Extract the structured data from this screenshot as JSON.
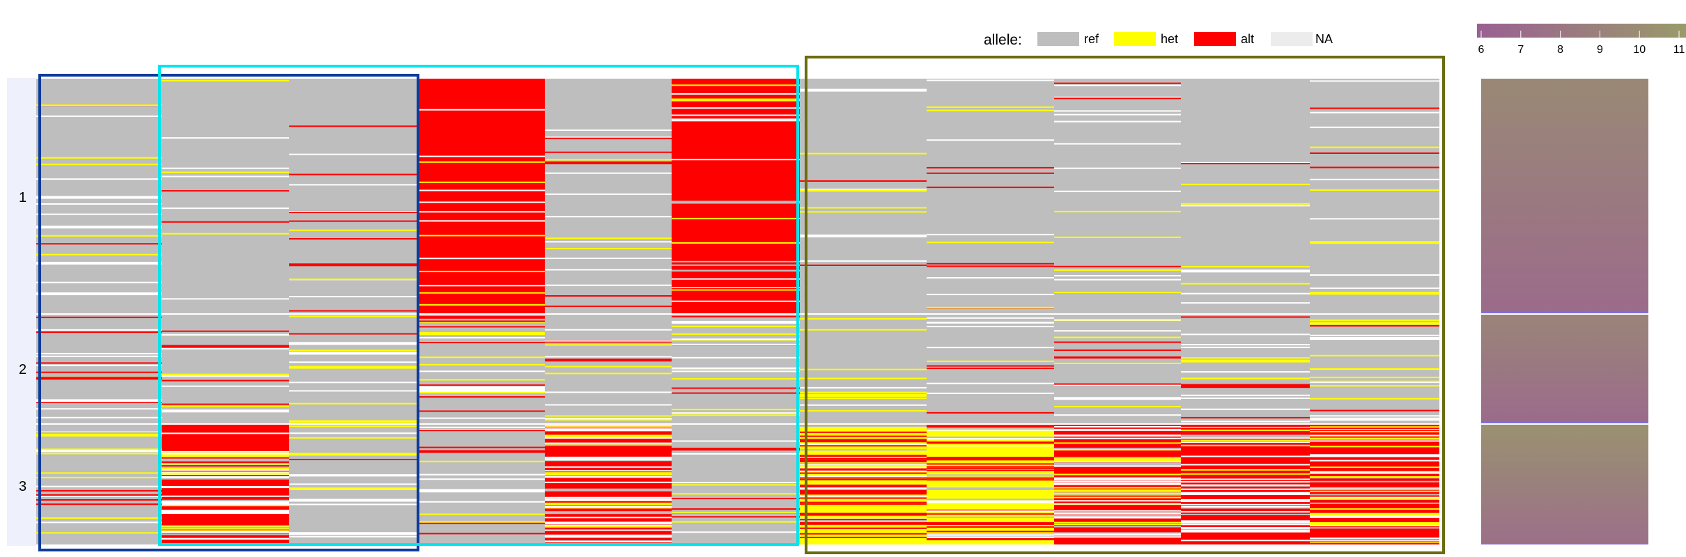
{
  "chart_data": {
    "type": "heatmap",
    "title": "",
    "legend": {
      "title": "allele:",
      "placement": "top-center",
      "entries": [
        {
          "label": "ref",
          "color": "#bebebe"
        },
        {
          "label": "het",
          "color": "#ffff00"
        },
        {
          "label": "alt",
          "color": "#ff0000"
        },
        {
          "label": "NA",
          "color": "#ececec"
        }
      ]
    },
    "row_groups": [
      {
        "label": "1",
        "annotation_top": 9.6,
        "annotation_bottom": 7.0
      },
      {
        "label": "2",
        "annotation_top": 9.2,
        "annotation_bottom": 7.0
      },
      {
        "label": "3",
        "annotation_top": 10.2,
        "annotation_bottom": 7.4
      }
    ],
    "column_blocks": [
      {
        "columns": [
          0,
          1,
          2
        ],
        "outline_color": "#0d3b9c"
      },
      {
        "columns": [
          1,
          2,
          3,
          4,
          5
        ],
        "outline_color": "#00e5ee"
      },
      {
        "columns": [
          6,
          7,
          8,
          9,
          10
        ],
        "outline_color": "#6b6b10"
      }
    ],
    "base_allele": [
      [
        "ref",
        "ref",
        "ref",
        "alt",
        "ref",
        "alt",
        "ref",
        "ref",
        "ref",
        "ref",
        "ref"
      ],
      [
        "ref",
        "ref",
        "ref",
        "ref",
        "ref",
        "ref",
        "ref",
        "ref",
        "ref",
        "ref",
        "ref"
      ],
      [
        "ref",
        "alt",
        "ref",
        "ref",
        "alt",
        "ref",
        "het",
        "het",
        "alt",
        "alt",
        "alt"
      ]
    ],
    "color_scale": {
      "ticks": [
        "6",
        "7",
        "8",
        "9",
        "10",
        "11"
      ],
      "range": [
        6,
        11
      ],
      "low_color": "#9b5f93",
      "high_color": "#9a9a6a"
    }
  }
}
